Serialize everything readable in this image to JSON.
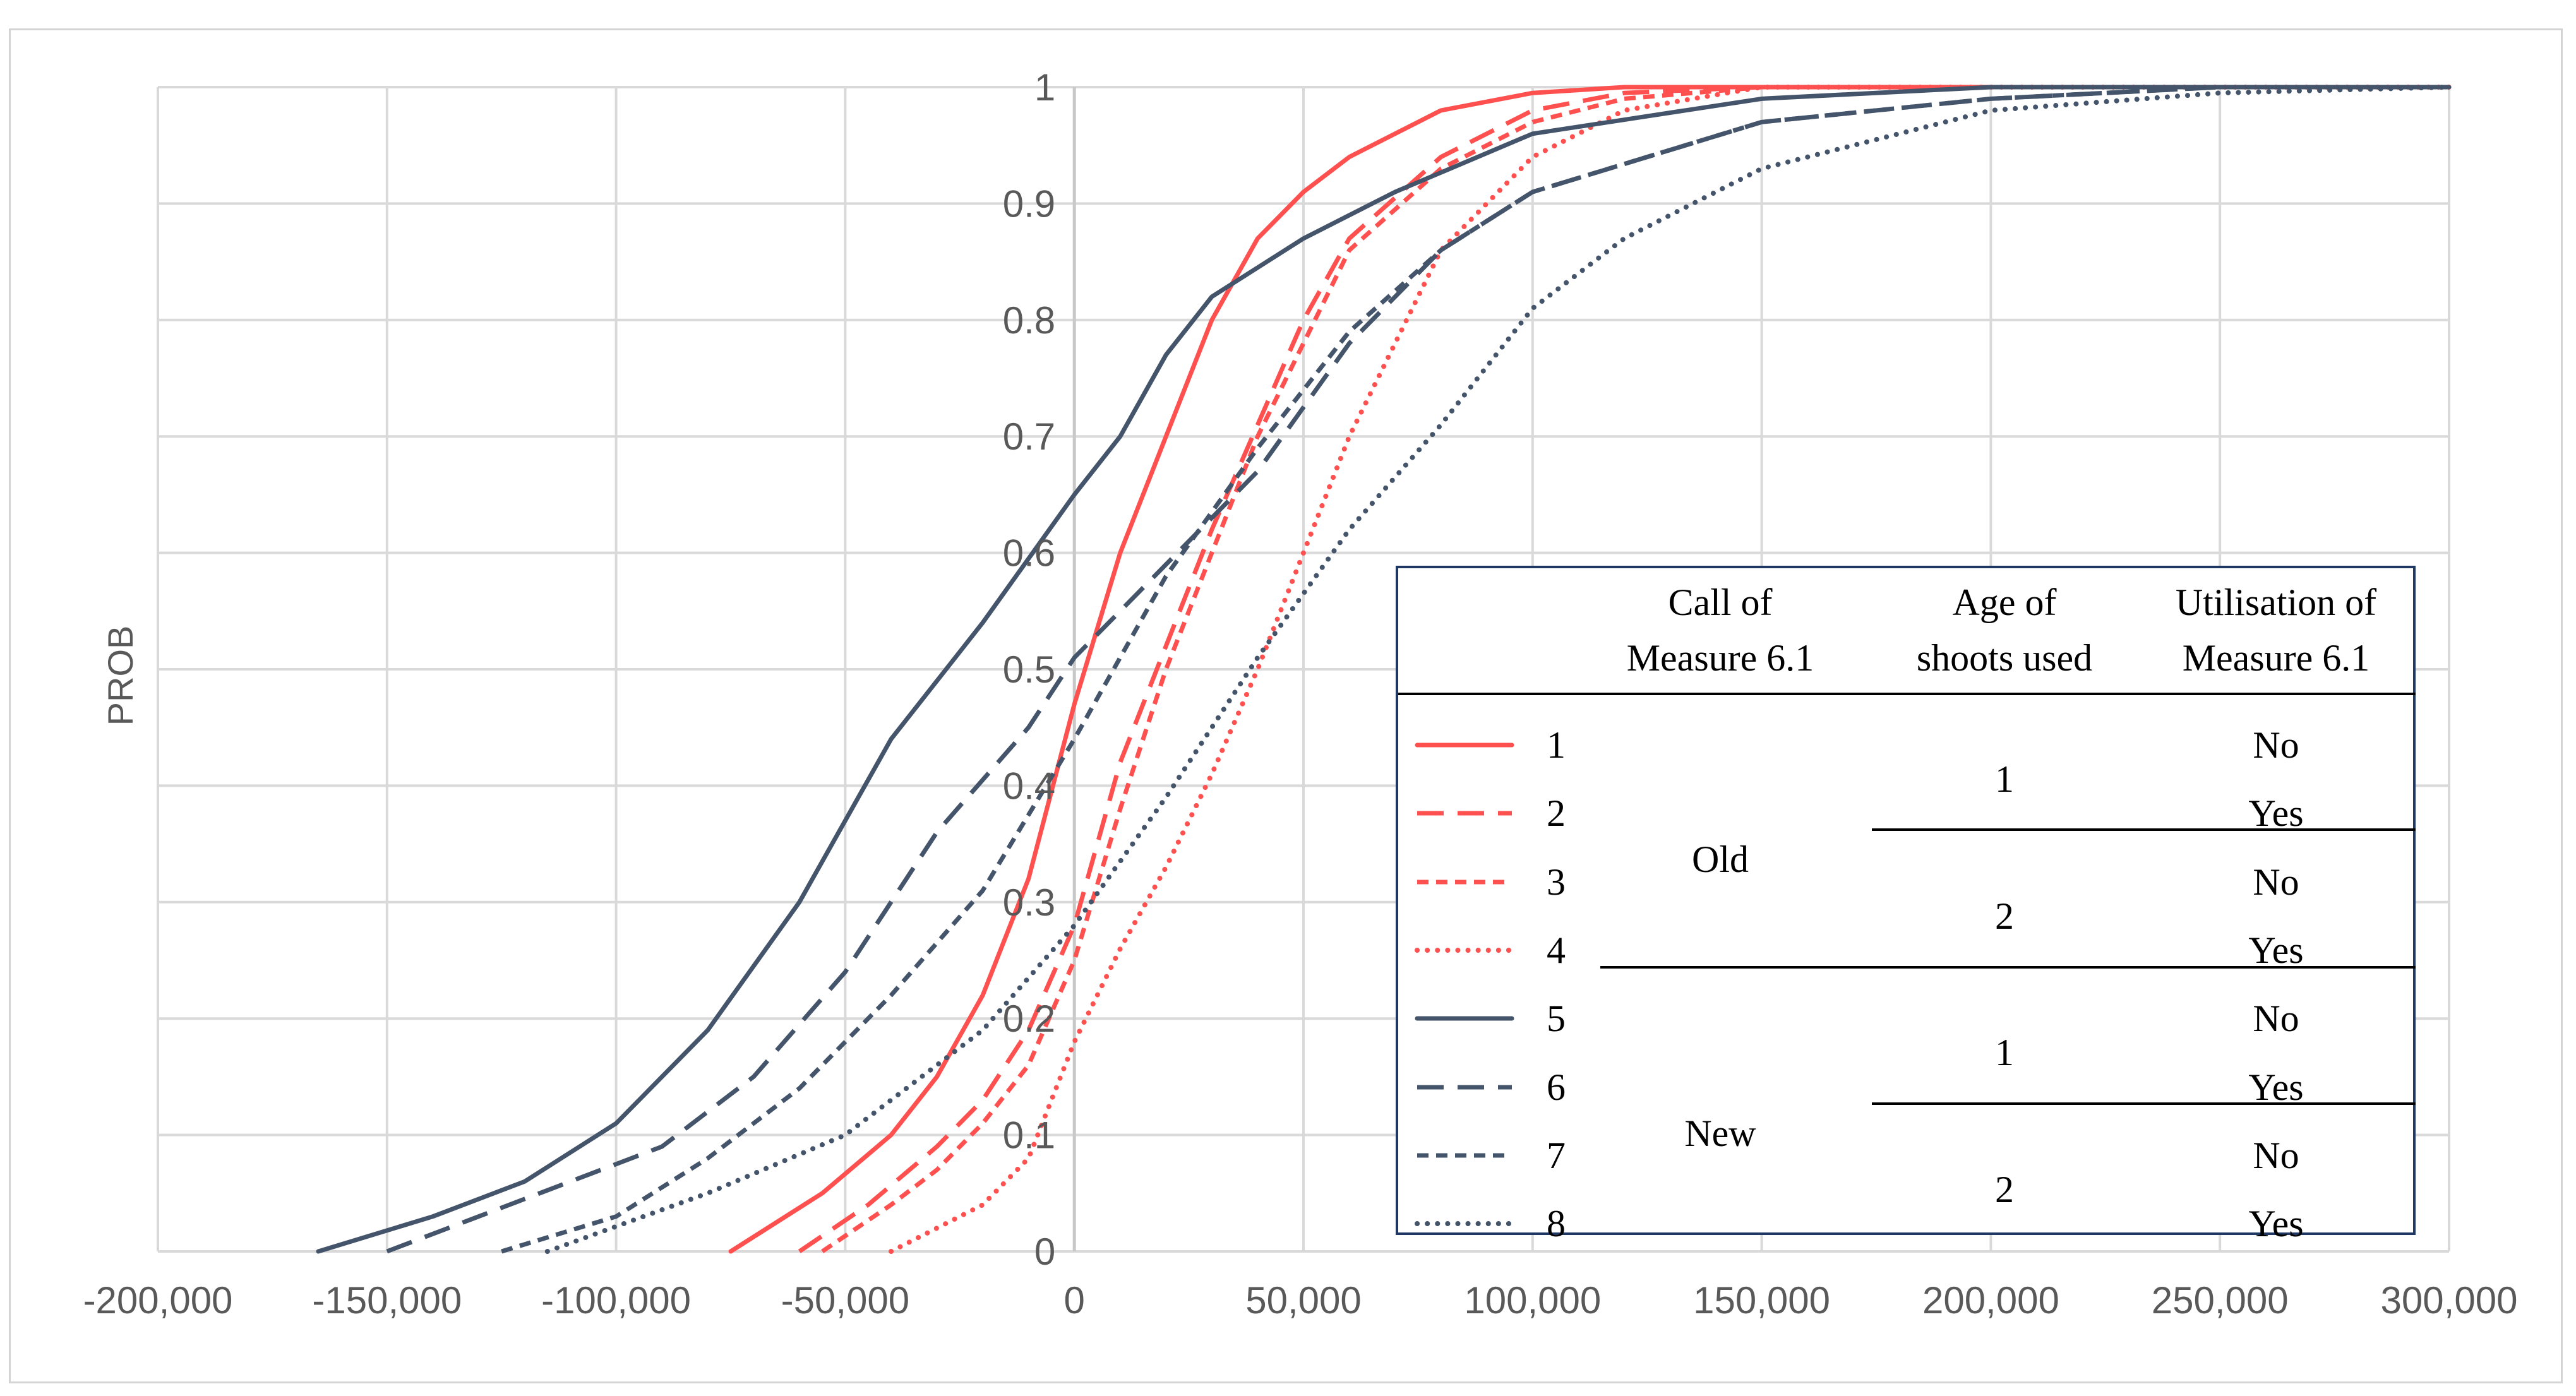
{
  "chart_data": {
    "type": "line",
    "title": "",
    "xlabel": "",
    "ylabel": "PROB",
    "xlim": [
      -200000,
      300000
    ],
    "ylim": [
      0,
      1
    ],
    "x_ticks": [
      "-200,000",
      "-150,000",
      "-100,000",
      "-50,000",
      "0",
      "50,000",
      "100,000",
      "150,000",
      "200,000",
      "250,000",
      "300,000"
    ],
    "x_tick_values": [
      -200000,
      -150000,
      -100000,
      -50000,
      0,
      50000,
      100000,
      150000,
      200000,
      250000,
      300000
    ],
    "y_ticks": [
      "0",
      "0.1",
      "0.2",
      "0.3",
      "0.4",
      "0.5",
      "0.6",
      "0.7",
      "0.8",
      "0.9",
      "1"
    ],
    "y_tick_values": [
      0,
      0.1,
      0.2,
      0.3,
      0.4,
      0.5,
      0.6,
      0.7,
      0.8,
      0.9,
      1
    ],
    "grid": true,
    "series": [
      {
        "name": "1",
        "color": "#ff5050",
        "dash": "solid",
        "x": [
          -75000,
          -55000,
          -40000,
          -30000,
          -20000,
          -10000,
          0,
          10000,
          20000,
          30000,
          40000,
          50000,
          60000,
          80000,
          100000,
          120000,
          150000,
          300000
        ],
        "y": [
          0,
          0.05,
          0.1,
          0.15,
          0.22,
          0.32,
          0.47,
          0.6,
          0.7,
          0.8,
          0.87,
          0.91,
          0.94,
          0.98,
          0.995,
          1,
          1,
          1
        ]
      },
      {
        "name": "2",
        "color": "#ff5050",
        "dash": "longdash",
        "x": [
          -60000,
          -45000,
          -30000,
          -20000,
          -10000,
          0,
          10000,
          20000,
          30000,
          40000,
          50000,
          60000,
          80000,
          100000,
          120000,
          150000,
          300000
        ],
        "y": [
          0,
          0.04,
          0.09,
          0.13,
          0.19,
          0.28,
          0.42,
          0.52,
          0.62,
          0.71,
          0.8,
          0.87,
          0.94,
          0.98,
          0.995,
          1,
          1
        ]
      },
      {
        "name": "3",
        "color": "#ff5050",
        "dash": "shortdash",
        "x": [
          -55000,
          -40000,
          -30000,
          -20000,
          -10000,
          0,
          10000,
          20000,
          30000,
          40000,
          50000,
          60000,
          80000,
          100000,
          120000,
          150000,
          300000
        ],
        "y": [
          0,
          0.04,
          0.07,
          0.11,
          0.16,
          0.25,
          0.38,
          0.5,
          0.6,
          0.7,
          0.78,
          0.86,
          0.93,
          0.97,
          0.99,
          1,
          1
        ]
      },
      {
        "name": "4",
        "color": "#ff5050",
        "dash": "dotted",
        "x": [
          -40000,
          -20000,
          -10000,
          0,
          10000,
          20000,
          30000,
          40000,
          50000,
          60000,
          70000,
          80000,
          90000,
          100000,
          120000,
          150000,
          300000
        ],
        "y": [
          0,
          0.04,
          0.08,
          0.18,
          0.26,
          0.33,
          0.41,
          0.5,
          0.6,
          0.7,
          0.78,
          0.86,
          0.9,
          0.94,
          0.98,
          1,
          1
        ]
      },
      {
        "name": "5",
        "color": "#44546a",
        "dash": "solid",
        "x": [
          -165000,
          -140000,
          -120000,
          -100000,
          -80000,
          -60000,
          -40000,
          -20000,
          0,
          10000,
          20000,
          30000,
          50000,
          70000,
          100000,
          150000,
          200000,
          250000,
          300000
        ],
        "y": [
          0,
          0.03,
          0.06,
          0.11,
          0.19,
          0.3,
          0.44,
          0.54,
          0.65,
          0.7,
          0.77,
          0.82,
          0.87,
          0.91,
          0.96,
          0.99,
          1,
          1,
          1
        ]
      },
      {
        "name": "6",
        "color": "#44546a",
        "dash": "longdash",
        "x": [
          -150000,
          -130000,
          -110000,
          -90000,
          -70000,
          -50000,
          -30000,
          -10000,
          0,
          20000,
          40000,
          60000,
          80000,
          100000,
          150000,
          200000,
          250000,
          300000
        ],
        "y": [
          0,
          0.03,
          0.06,
          0.09,
          0.15,
          0.24,
          0.36,
          0.45,
          0.51,
          0.59,
          0.67,
          0.78,
          0.86,
          0.91,
          0.97,
          0.99,
          1,
          1
        ]
      },
      {
        "name": "7",
        "color": "#44546a",
        "dash": "shortdash",
        "x": [
          -125000,
          -100000,
          -80000,
          -60000,
          -40000,
          -20000,
          0,
          20000,
          40000,
          60000,
          80000,
          100000,
          150000,
          200000,
          250000,
          300000
        ],
        "y": [
          0,
          0.03,
          0.08,
          0.14,
          0.22,
          0.31,
          0.44,
          0.58,
          0.69,
          0.79,
          0.86,
          0.91,
          0.97,
          0.99,
          1,
          1
        ]
      },
      {
        "name": "8",
        "color": "#44546a",
        "dash": "dotted",
        "x": [
          -115000,
          -80000,
          -50000,
          -20000,
          0,
          20000,
          40000,
          60000,
          80000,
          100000,
          120000,
          150000,
          200000,
          250000,
          300000
        ],
        "y": [
          0,
          0.05,
          0.1,
          0.19,
          0.28,
          0.39,
          0.51,
          0.62,
          0.71,
          0.81,
          0.87,
          0.93,
          0.98,
          0.995,
          1
        ]
      }
    ]
  },
  "legend": {
    "headers": [
      "Call of\nMeasure 6.1",
      "Age of\nshoots used",
      "Utilisation of\nMeasure 6.1"
    ],
    "numbers": [
      "1",
      "2",
      "3",
      "4",
      "5",
      "6",
      "7",
      "8"
    ],
    "call": [
      "Old",
      "New"
    ],
    "age": [
      "1",
      "2",
      "1",
      "2"
    ],
    "utilisation": [
      "No",
      "Yes",
      "No",
      "Yes",
      "No",
      "Yes",
      "No",
      "Yes"
    ]
  }
}
